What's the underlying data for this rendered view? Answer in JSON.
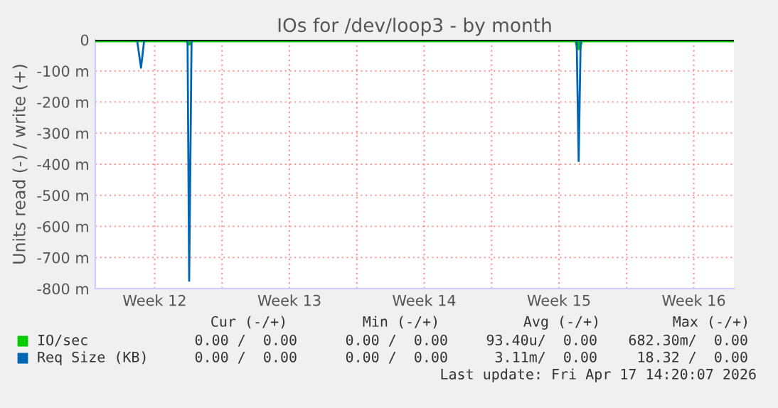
{
  "chart_data": {
    "type": "line",
    "title": "IOs for /dev/loop3 - by month",
    "ylabel": "Units read (-) / write (+)",
    "xlim": [
      "2026-03-16T10:00",
      "2026-04-18T14:00"
    ],
    "xticks": [
      {
        "value": "2026-03-19T12:00",
        "label": "Week 12"
      },
      {
        "value": "2026-03-23",
        "label": null
      },
      {
        "value": "2026-03-26T12:00",
        "label": "Week 13"
      },
      {
        "value": "2026-03-30",
        "label": null
      },
      {
        "value": "2026-04-02T12:00",
        "label": "Week 14"
      },
      {
        "value": "2026-04-06",
        "label": null
      },
      {
        "value": "2026-04-09T12:00",
        "label": "Week 15"
      },
      {
        "value": "2026-04-13",
        "label": null
      },
      {
        "value": "2026-04-16T12:00",
        "label": "Week 16"
      }
    ],
    "ylim": [
      -800,
      0
    ],
    "yticks": [
      {
        "value": -800,
        "label": "-800 m"
      },
      {
        "value": -700,
        "label": "-700 m"
      },
      {
        "value": -600,
        "label": "-600 m"
      },
      {
        "value": -500,
        "label": "-500 m"
      },
      {
        "value": -400,
        "label": "-400 m"
      },
      {
        "value": -300,
        "label": "-300 m"
      },
      {
        "value": -200,
        "label": "-200 m"
      },
      {
        "value": -100,
        "label": "-100 m"
      },
      0
    ],
    "grid": true,
    "legend": "bottom left",
    "ref_lines": [
      {
        "axis": "y",
        "value": 0,
        "color": "#000000"
      }
    ],
    "series": [
      {
        "name": "IO/sec",
        "color": "#00cc00",
        "x": [
          "2026-03-16T10:00",
          "2026-03-21T05:00",
          "2026-03-21T07:00",
          "2026-03-21T10:00",
          "2026-04-10T10:00",
          "2026-04-10T12:30",
          "2026-04-10T15:00",
          "2026-04-18T14:00"
        ],
        "values": [
          0,
          0,
          -10,
          0,
          0,
          -25,
          0,
          0
        ]
      },
      {
        "name": "Req Size (KB)",
        "color": "#0066b3",
        "x": [
          "2026-03-16T10:00",
          "2026-03-18T14:00",
          "2026-03-18T19:00",
          "2026-03-18T23:00",
          "2026-03-21T05:00",
          "2026-03-21T07:00",
          "2026-03-21T10:00",
          "2026-04-10T10:00",
          "2026-04-10T12:30",
          "2026-04-10T15:00",
          "2026-04-18T14:00"
        ],
        "values": [
          0,
          0,
          -90,
          0,
          0,
          -775,
          0,
          0,
          -390,
          0,
          0
        ]
      }
    ],
    "annotations": [
      "Cur (-/+)",
      "Min (-/+)",
      "Avg (-/+)",
      "Max (-/+)",
      "0.00 /  0.00",
      "0.00 /  0.00",
      "93.40u/  0.00",
      "682.30m/  0.00",
      "0.00 /  0.00",
      "0.00 /  0.00",
      "3.11m/  0.00",
      "18.32 /  0.00",
      "Last update: Fri Apr 17 14:20:07 2026"
    ]
  }
}
